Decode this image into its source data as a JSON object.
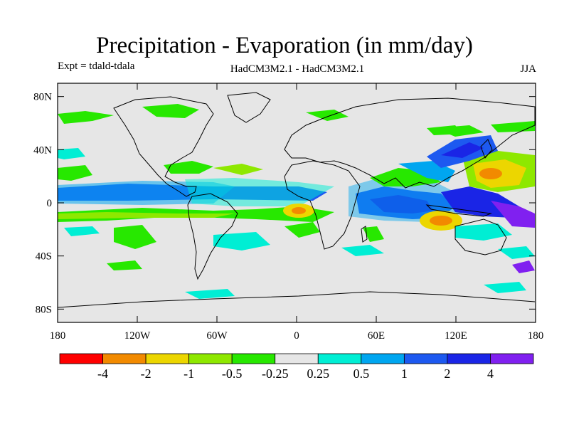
{
  "title": "Precipitation - Evaporation (in mm/day)",
  "subtitle_left": "Expt = tdald-tdala",
  "subtitle_center": "HadCM3M2.1 - HadCM3M2.1",
  "subtitle_right": "JJA",
  "axes": {
    "lon_ticks": [
      "180",
      "120W",
      "60W",
      "0",
      "60E",
      "120E",
      "180"
    ],
    "lat_ticks": [
      "80N",
      "40N",
      "0",
      "40S",
      "80S"
    ]
  },
  "legend": {
    "colors": [
      "#ff0000",
      "#f28a00",
      "#ecd600",
      "#8ee800",
      "#27e800",
      "#e6e6e6",
      "#00eed4",
      "#00a6f0",
      "#1d59f0",
      "#1a25e6",
      "#8020f0"
    ],
    "labels": [
      "-4",
      "-2",
      "-1",
      "-0.5",
      "-0.25",
      "0.25",
      "0.5",
      "1",
      "2",
      "4"
    ]
  },
  "map": {
    "background_color": "#e6e6e6",
    "coastline_color": "#000000"
  }
}
